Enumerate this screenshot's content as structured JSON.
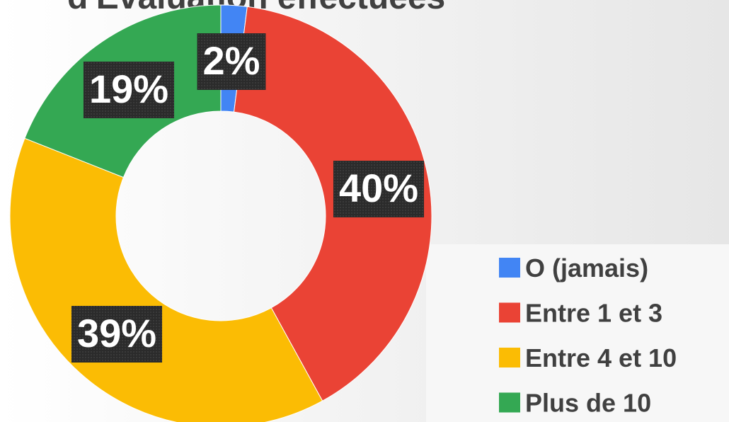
{
  "chart_data": {
    "type": "donut",
    "title": "d'Évaluation effectuées",
    "categories": [
      "O (jamais)",
      "Entre 1 et 3",
      "Entre 4 et 10",
      "Plus de 10"
    ],
    "values": [
      2,
      40,
      39,
      19
    ],
    "value_labels": [
      "2%",
      "40%",
      "39%",
      "19%"
    ],
    "colors": [
      "#4285f4",
      "#ea4335",
      "#fbbc04",
      "#34a853"
    ],
    "legend": "right"
  }
}
